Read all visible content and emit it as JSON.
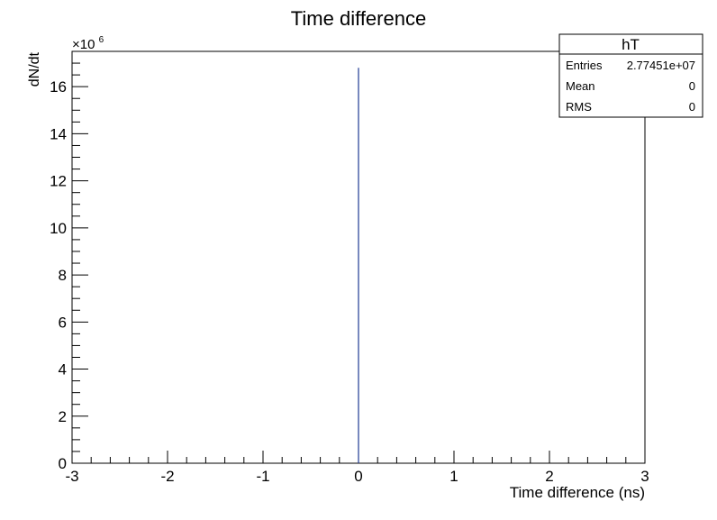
{
  "chart_data": {
    "type": "bar",
    "title": "Time difference",
    "xlabel": "Time difference (ns)",
    "ylabel": "dN/dt",
    "xlim": [
      -3,
      3
    ],
    "ylim": [
      0,
      17.5
    ],
    "y_scale_exponent_label": "×10",
    "y_scale_exponent": "6",
    "x_ticks": [
      -3,
      -2,
      -1,
      0,
      1,
      2,
      3
    ],
    "x_tick_labels": [
      "-3",
      "-2",
      "-1",
      "0",
      "1",
      "2",
      "3"
    ],
    "y_ticks": [
      0,
      2,
      4,
      6,
      8,
      10,
      12,
      14,
      16
    ],
    "y_tick_labels": [
      "0",
      "2",
      "4",
      "6",
      "8",
      "10",
      "12",
      "14",
      "16"
    ],
    "grid": false,
    "bins": [
      {
        "x": 0,
        "value": 16.8
      }
    ],
    "line_color": "#1f3a93",
    "stats_box": {
      "placement": "top-right",
      "name": "hT",
      "rows": [
        {
          "label": "Entries",
          "value": "2.77451e+07"
        },
        {
          "label": "Mean",
          "value": "0"
        },
        {
          "label": "RMS",
          "value": "0"
        }
      ]
    }
  }
}
